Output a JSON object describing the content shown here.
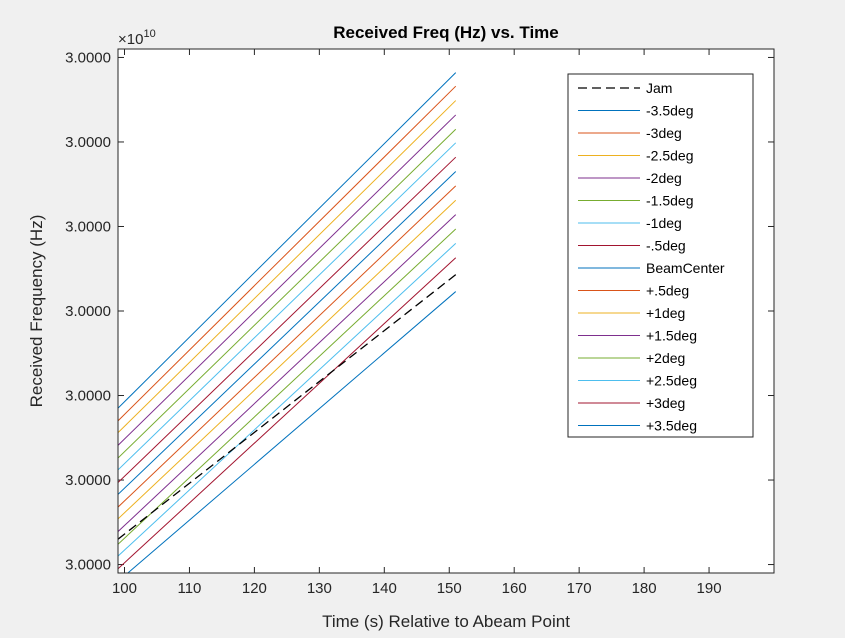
{
  "chart_data": {
    "type": "line",
    "title": "Received Freq (Hz) vs. Time",
    "xlabel": "Time (s) Relative to Abeam Point",
    "ylabel": "Received Frequency (Hz)",
    "y_exponent_label": "×10",
    "y_exponent_power": "10",
    "xlim": [
      99,
      200
    ],
    "ylim": [
      0,
      6.2
    ],
    "x_ticks": [
      100,
      110,
      120,
      130,
      140,
      150,
      160,
      170,
      180,
      190
    ],
    "y_ticks": [
      {
        "value": 0.1,
        "label": "3.0000"
      },
      {
        "value": 1.1,
        "label": "3.0000"
      },
      {
        "value": 2.1,
        "label": "3.0000"
      },
      {
        "value": 3.1,
        "label": "3.0000"
      },
      {
        "value": 4.1,
        "label": "3.0000"
      },
      {
        "value": 5.1,
        "label": "3.0000"
      },
      {
        "value": 6.1,
        "label": "3.0000"
      }
    ],
    "legend_position": "top-right",
    "grid": false,
    "x_range_data": [
      99,
      151
    ],
    "series": [
      {
        "name": "Jam",
        "color": "#000000",
        "dash": true,
        "y_start": 0.4,
        "y_end": 3.53
      },
      {
        "name": "-3.5deg",
        "color": "#0072BD",
        "dash": false,
        "y_start": 1.95,
        "y_end": 5.92
      },
      {
        "name": "-3deg",
        "color": "#D95319",
        "dash": false,
        "y_start": 1.8,
        "y_end": 5.76
      },
      {
        "name": "-2.5deg",
        "color": "#EDB120",
        "dash": false,
        "y_start": 1.66,
        "y_end": 5.59
      },
      {
        "name": "-2deg",
        "color": "#7E2F8E",
        "dash": false,
        "y_start": 1.51,
        "y_end": 5.42
      },
      {
        "name": "-1.5deg",
        "color": "#77AC30",
        "dash": false,
        "y_start": 1.36,
        "y_end": 5.25
      },
      {
        "name": "-1deg",
        "color": "#4DBEEE",
        "dash": false,
        "y_start": 1.22,
        "y_end": 5.09
      },
      {
        "name": "-.5deg",
        "color": "#A2142F",
        "dash": false,
        "y_start": 1.07,
        "y_end": 4.92
      },
      {
        "name": "BeamCenter",
        "color": "#0072BD",
        "dash": false,
        "y_start": 0.93,
        "y_end": 4.75
      },
      {
        "name": "+.5deg",
        "color": "#D95319",
        "dash": false,
        "y_start": 0.78,
        "y_end": 4.58
      },
      {
        "name": "+1deg",
        "color": "#EDB120",
        "dash": false,
        "y_start": 0.64,
        "y_end": 4.41
      },
      {
        "name": "+1.5deg",
        "color": "#7E2F8E",
        "dash": false,
        "y_start": 0.49,
        "y_end": 4.24
      },
      {
        "name": "+2deg",
        "color": "#77AC30",
        "dash": false,
        "y_start": 0.34,
        "y_end": 4.07
      },
      {
        "name": "+2.5deg",
        "color": "#4DBEEE",
        "dash": false,
        "y_start": 0.2,
        "y_end": 3.9
      },
      {
        "name": "+3deg",
        "color": "#A2142F",
        "dash": false,
        "y_start": 0.05,
        "y_end": 3.73
      },
      {
        "name": "+3.5deg",
        "color": "#0072BD",
        "dash": false,
        "y_start": -0.1,
        "y_end": 3.33
      }
    ]
  }
}
